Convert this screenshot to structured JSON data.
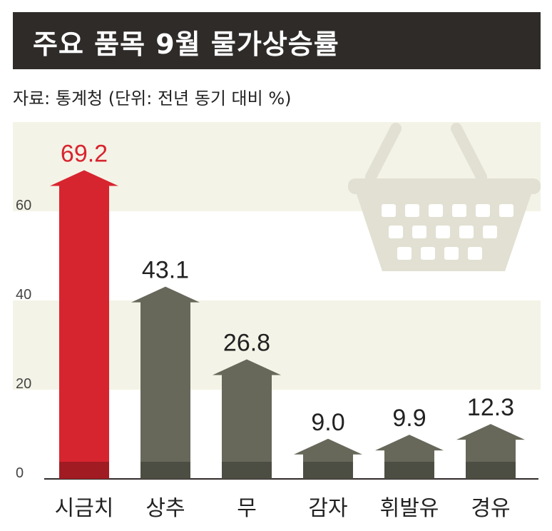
{
  "header": {
    "title": "주요 품목 9월 물가상승률"
  },
  "source_note": "자료: 통계청 (단위: 전년 동기 대비 %)",
  "colors": {
    "highlight": "#d7252f",
    "bar": "#67685a",
    "band": "#f4f3e7",
    "basket": "#e2e0d2"
  },
  "decor": {
    "icon": "shopping-basket-icon"
  },
  "chart_data": {
    "type": "bar",
    "title": "주요 품목 9월 물가상승률",
    "xlabel": "",
    "ylabel": "",
    "categories": [
      "시금치",
      "상추",
      "무",
      "감자",
      "휘발유",
      "경유"
    ],
    "values": [
      69.2,
      43.1,
      26.8,
      9.0,
      9.9,
      12.3
    ],
    "value_labels": [
      "69.2",
      "43.1",
      "26.8",
      "9.0",
      "9.9",
      "12.3"
    ],
    "yticks": [
      "0",
      "20",
      "40",
      "60"
    ],
    "ylim": [
      0,
      80
    ],
    "highlight_index": 0,
    "grid": false,
    "background_bands": true
  }
}
